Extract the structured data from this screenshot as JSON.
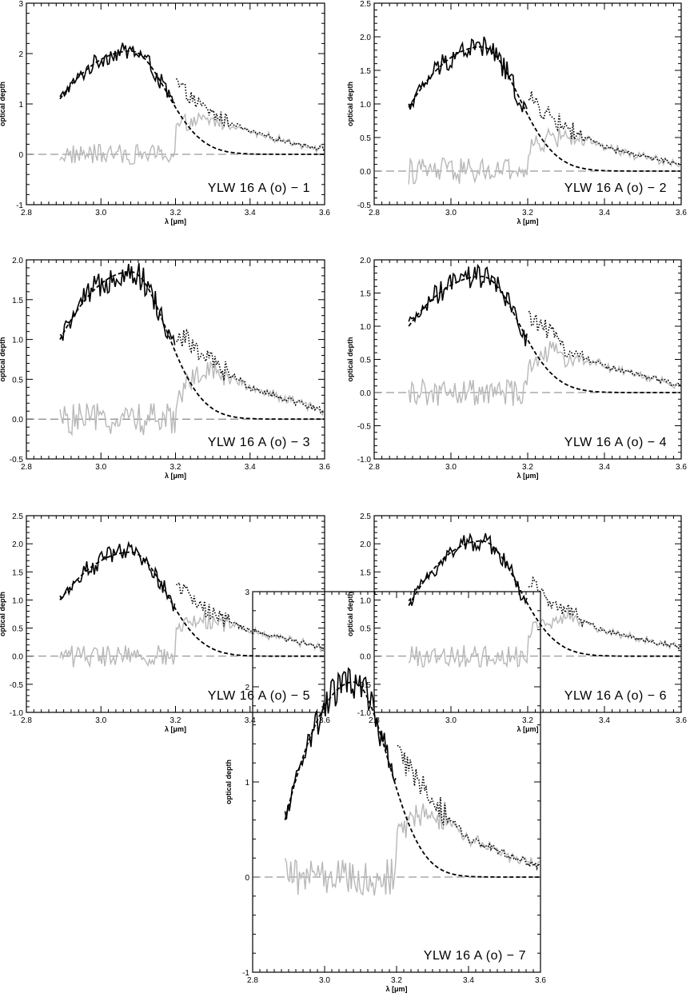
{
  "figure": {
    "ylabel": "optical depth",
    "xlabel": "λ [μm]"
  },
  "chart_data": [
    {
      "type": "line",
      "label": "YLW 16 A (o) − 1",
      "xlabel": "λ [μm]",
      "ylabel": "optical depth",
      "xlim": [
        2.8,
        3.6
      ],
      "ylim": [
        -1,
        3
      ],
      "xticks": [
        "2.8",
        "3.0",
        "3.2",
        "3.4",
        "3.6"
      ],
      "yticks": [
        "-1",
        "0",
        "1",
        "2",
        "3"
      ],
      "peak": 2.05,
      "series": [
        {
          "style": "solid-black",
          "x": [
            2.89,
            2.95,
            3.0,
            3.05,
            3.1,
            3.15,
            3.2
          ],
          "y": [
            1.1,
            1.6,
            1.85,
            2.0,
            2.05,
            1.8,
            1.4
          ]
        },
        {
          "style": "dashed-black",
          "x": [
            2.89,
            3.0,
            3.1,
            3.2,
            3.3,
            3.4,
            3.5,
            3.6
          ],
          "y": [
            1.1,
            1.85,
            2.05,
            1.35,
            0.45,
            0.12,
            0.03,
            0.01
          ]
        },
        {
          "style": "dotted-black",
          "x": [
            3.2,
            3.25,
            3.3,
            3.4,
            3.5,
            3.6
          ],
          "y": [
            1.45,
            1.05,
            0.8,
            0.45,
            0.25,
            0.1
          ]
        },
        {
          "style": "gray-residual",
          "x": [
            2.89,
            3.2,
            3.25,
            3.3,
            3.4,
            3.5,
            3.6
          ],
          "y": [
            0.0,
            0.0,
            0.55,
            0.4,
            0.3,
            0.2,
            0.1
          ]
        }
      ]
    },
    {
      "type": "line",
      "label": "YLW 16 A (o) − 2",
      "xlabel": "λ [μm]",
      "ylabel": "optical depth",
      "xlim": [
        2.8,
        3.6
      ],
      "ylim": [
        -0.5,
        2.5
      ],
      "xticks": [
        "2.8",
        "3.0",
        "3.2",
        "3.4",
        "3.6"
      ],
      "yticks": [
        "-0.5",
        "0.0",
        "0.5",
        "1.0",
        "1.5",
        "2.0",
        "2.5"
      ],
      "peak": 1.85,
      "series": [
        {
          "style": "solid-black",
          "x": [
            2.89,
            2.95,
            3.0,
            3.05,
            3.1,
            3.15,
            3.2
          ],
          "y": [
            0.95,
            1.4,
            1.7,
            1.85,
            1.85,
            1.5,
            1.1
          ]
        },
        {
          "style": "dashed-black",
          "x": [
            2.89,
            3.0,
            3.1,
            3.2,
            3.3,
            3.4,
            3.5,
            3.6
          ],
          "y": [
            0.95,
            1.7,
            1.85,
            1.2,
            0.4,
            0.1,
            0.03,
            0.01
          ]
        },
        {
          "style": "dotted-black",
          "x": [
            3.2,
            3.25,
            3.3,
            3.4,
            3.5,
            3.6
          ],
          "y": [
            1.1,
            0.85,
            0.65,
            0.35,
            0.22,
            0.1
          ]
        },
        {
          "style": "gray-residual",
          "x": [
            2.89,
            3.2,
            3.25,
            3.3,
            3.4,
            3.5,
            3.6
          ],
          "y": [
            0.0,
            0.0,
            0.4,
            0.35,
            0.25,
            0.18,
            0.08
          ]
        }
      ]
    },
    {
      "type": "line",
      "label": "YLW 16 A (o) − 3",
      "xlabel": "λ [μm]",
      "ylabel": "optical depth",
      "xlim": [
        2.8,
        3.6
      ],
      "ylim": [
        -0.5,
        2.0
      ],
      "xticks": [
        "2.8",
        "3.0",
        "3.2",
        "3.4",
        "3.6"
      ],
      "yticks": [
        "-0.5",
        "0.0",
        "0.5",
        "1.0",
        "1.5",
        "2.0"
      ],
      "peak": 1.85,
      "series": [
        {
          "style": "solid-black",
          "x": [
            2.89,
            2.95,
            3.0,
            3.05,
            3.1,
            3.15,
            3.2
          ],
          "y": [
            1.0,
            1.45,
            1.7,
            1.8,
            1.85,
            1.6,
            1.15
          ]
        },
        {
          "style": "dashed-black",
          "x": [
            2.89,
            3.0,
            3.1,
            3.2,
            3.3,
            3.4,
            3.5,
            3.6
          ],
          "y": [
            1.0,
            1.7,
            1.85,
            1.15,
            0.4,
            0.12,
            0.04,
            0.02
          ]
        },
        {
          "style": "dotted-black",
          "x": [
            3.2,
            3.25,
            3.3,
            3.4,
            3.5,
            3.6
          ],
          "y": [
            1.1,
            0.9,
            0.7,
            0.4,
            0.25,
            0.1
          ]
        },
        {
          "style": "gray-residual",
          "x": [
            2.89,
            3.2,
            3.25,
            3.3,
            3.4,
            3.5,
            3.6
          ],
          "y": [
            0.0,
            0.0,
            0.45,
            0.35,
            0.28,
            0.2,
            0.08
          ]
        }
      ]
    },
    {
      "type": "line",
      "label": "YLW 16 A (o) − 4",
      "xlabel": "λ [μm]",
      "ylabel": "optical depth",
      "xlim": [
        2.8,
        3.6
      ],
      "ylim": [
        -1.0,
        2.0
      ],
      "xticks": [
        "2.8",
        "3.0",
        "3.2",
        "3.4",
        "3.6"
      ],
      "yticks": [
        "-1.0",
        "-0.5",
        "0.0",
        "0.5",
        "1.0",
        "1.5",
        "2.0"
      ],
      "peak": 1.75,
      "series": [
        {
          "style": "solid-black",
          "x": [
            2.89,
            2.95,
            3.0,
            3.05,
            3.1,
            3.15,
            3.2
          ],
          "y": [
            1.0,
            1.4,
            1.65,
            1.75,
            1.75,
            1.6,
            1.1
          ]
        },
        {
          "style": "dashed-black",
          "x": [
            2.89,
            3.0,
            3.1,
            3.2,
            3.3,
            3.4,
            3.5,
            3.6
          ],
          "y": [
            1.0,
            1.65,
            1.75,
            1.1,
            0.38,
            0.1,
            0.03,
            0.01
          ]
        },
        {
          "style": "dotted-black",
          "x": [
            3.2,
            3.25,
            3.3,
            3.4,
            3.5,
            3.6
          ],
          "y": [
            1.15,
            0.95,
            0.65,
            0.4,
            0.25,
            0.1
          ]
        },
        {
          "style": "gray-residual",
          "x": [
            2.89,
            3.2,
            3.25,
            3.3,
            3.4,
            3.5,
            3.6
          ],
          "y": [
            0.0,
            0.0,
            0.5,
            0.35,
            0.28,
            0.2,
            0.08
          ]
        }
      ]
    },
    {
      "type": "line",
      "label": "YLW 16 A (o) − 5",
      "xlabel": "λ [μm]",
      "ylabel": "optical depth",
      "xlim": [
        2.8,
        3.6
      ],
      "ylim": [
        -1.0,
        2.5
      ],
      "xticks": [
        "2.8",
        "3.0",
        "3.2",
        "3.4",
        "3.6"
      ],
      "yticks": [
        "-1.0",
        "-0.5",
        "0.0",
        "0.5",
        "1.0",
        "1.5",
        "2.0",
        "2.5"
      ],
      "peak": 1.85,
      "series": [
        {
          "style": "solid-black",
          "x": [
            2.89,
            2.95,
            3.0,
            3.05,
            3.1,
            3.15,
            3.2
          ],
          "y": [
            1.0,
            1.4,
            1.65,
            1.8,
            1.85,
            1.65,
            1.25
          ]
        },
        {
          "style": "dashed-black",
          "x": [
            2.89,
            3.0,
            3.1,
            3.2,
            3.3,
            3.4,
            3.5,
            3.6
          ],
          "y": [
            1.0,
            1.65,
            1.85,
            1.2,
            0.4,
            0.12,
            0.04,
            0.01
          ]
        },
        {
          "style": "dotted-black",
          "x": [
            3.2,
            3.25,
            3.3,
            3.4,
            3.5,
            3.6
          ],
          "y": [
            1.3,
            1.0,
            0.75,
            0.45,
            0.3,
            0.15
          ]
        },
        {
          "style": "gray-residual",
          "x": [
            2.89,
            3.2,
            3.25,
            3.3,
            3.4,
            3.5,
            3.6
          ],
          "y": [
            0.0,
            0.0,
            0.55,
            0.4,
            0.3,
            0.25,
            0.12
          ]
        }
      ]
    },
    {
      "type": "line",
      "label": "YLW 16 A (o) − 6",
      "xlabel": "λ [μm]",
      "ylabel": "optical depth",
      "xlim": [
        2.8,
        3.6
      ],
      "ylim": [
        -1.0,
        2.5
      ],
      "xticks": [
        "2.8",
        "3.0",
        "3.2",
        "3.4",
        "3.6"
      ],
      "yticks": [
        "-1.0",
        "-0.5",
        "0.0",
        "0.5",
        "1.0",
        "1.5",
        "2.0",
        "2.5"
      ],
      "peak": 2.05,
      "series": [
        {
          "style": "solid-black",
          "x": [
            2.89,
            2.95,
            3.0,
            3.05,
            3.1,
            3.15,
            3.2
          ],
          "y": [
            0.9,
            1.5,
            1.8,
            1.95,
            2.05,
            1.7,
            1.35
          ]
        },
        {
          "style": "dashed-black",
          "x": [
            2.89,
            3.0,
            3.1,
            3.2,
            3.3,
            3.4,
            3.5,
            3.6
          ],
          "y": [
            0.9,
            1.8,
            2.05,
            1.35,
            0.45,
            0.12,
            0.04,
            0.01
          ]
        },
        {
          "style": "dotted-black",
          "x": [
            3.2,
            3.25,
            3.3,
            3.4,
            3.5,
            3.6
          ],
          "y": [
            1.35,
            1.05,
            0.8,
            0.45,
            0.3,
            0.15
          ]
        },
        {
          "style": "gray-residual",
          "x": [
            2.89,
            3.2,
            3.25,
            3.3,
            3.4,
            3.5,
            3.6
          ],
          "y": [
            0.0,
            0.0,
            0.6,
            0.45,
            0.35,
            0.25,
            0.12
          ]
        }
      ]
    },
    {
      "type": "line",
      "label": "YLW 16 A (o) − 7",
      "xlabel": "λ [μm]",
      "ylabel": "optical depth",
      "xlim": [
        2.8,
        3.6
      ],
      "ylim": [
        -1,
        3
      ],
      "xticks": [
        "2.8",
        "3.0",
        "3.2",
        "3.4",
        "3.6"
      ],
      "yticks": [
        "-1",
        "0",
        "1",
        "2",
        "3"
      ],
      "peak": 2.05,
      "series": [
        {
          "style": "solid-black",
          "x": [
            2.89,
            2.95,
            3.0,
            3.05,
            3.1,
            3.15,
            3.2
          ],
          "y": [
            0.6,
            1.3,
            1.6,
            1.9,
            2.05,
            1.6,
            1.3
          ]
        },
        {
          "style": "dashed-black",
          "x": [
            2.89,
            3.0,
            3.1,
            3.2,
            3.3,
            3.4,
            3.5,
            3.6
          ],
          "y": [
            0.6,
            1.6,
            2.05,
            1.3,
            0.45,
            0.12,
            0.04,
            0.01
          ]
        },
        {
          "style": "dotted-black",
          "x": [
            3.2,
            3.25,
            3.3,
            3.4,
            3.5,
            3.6
          ],
          "y": [
            1.3,
            1.05,
            0.8,
            0.4,
            0.25,
            0.1
          ]
        },
        {
          "style": "gray-residual",
          "x": [
            2.89,
            3.2,
            3.25,
            3.3,
            3.4,
            3.5,
            3.6
          ],
          "y": [
            0.0,
            0.0,
            0.5,
            0.4,
            0.3,
            0.2,
            0.08
          ]
        }
      ]
    }
  ]
}
